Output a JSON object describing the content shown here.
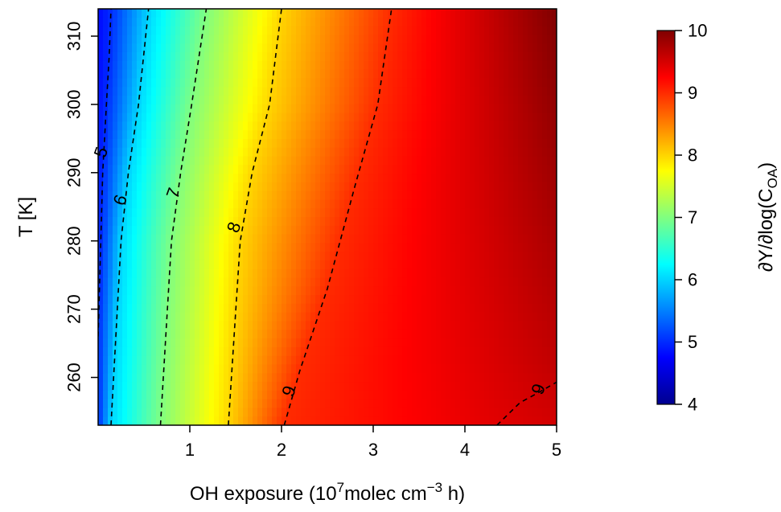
{
  "chart_data": {
    "type": "heatmap",
    "title": "",
    "xlabel": "OH exposure (10",
    "xlabel_sup": "7",
    "xlabel_rest": "molec cm",
    "xlabel_sup2": "−3",
    "xlabel_end": " h)",
    "ylabel": "T [K]",
    "colorbar_label_main": "∂Y/∂log(C",
    "colorbar_label_sub": "OA",
    "colorbar_label_end": ")",
    "xlim": [
      0,
      5
    ],
    "ylim": [
      253,
      314
    ],
    "x_ticks": [
      "1",
      "2",
      "3",
      "4",
      "5"
    ],
    "x_tick_values": [
      1,
      2,
      3,
      4,
      5
    ],
    "y_ticks": [
      "260",
      "270",
      "280",
      "290",
      "300",
      "310"
    ],
    "y_tick_values": [
      260,
      270,
      280,
      290,
      300,
      310
    ],
    "colorbar_range": [
      4,
      10
    ],
    "colorbar_ticks": [
      "4",
      "5",
      "6",
      "7",
      "8",
      "9",
      "10"
    ],
    "colorbar_tick_values": [
      4,
      5,
      6,
      7,
      8,
      9,
      10
    ],
    "colormap": [
      "#00008f",
      "#0000ff",
      "#0080ff",
      "#00ffff",
      "#80ff80",
      "#ffff00",
      "#ff8000",
      "#ff0000",
      "#800000"
    ],
    "contours": [
      {
        "level": "5",
        "points": [
          [
            0.0,
            266
          ],
          [
            0.05,
            290
          ],
          [
            0.09,
            300
          ],
          [
            0.12,
            307
          ],
          [
            0.14,
            314
          ]
        ],
        "label_at": [
          0.03,
          293
        ]
      },
      {
        "level": "6",
        "points": [
          [
            0.14,
            253
          ],
          [
            0.25,
            280
          ],
          [
            0.33,
            290
          ],
          [
            0.44,
            300
          ],
          [
            0.55,
            314
          ]
        ],
        "label_at": [
          0.24,
          286
        ]
      },
      {
        "level": "7",
        "points": [
          [
            0.68,
            253
          ],
          [
            0.8,
            280
          ],
          [
            0.9,
            290
          ],
          [
            1.02,
            300
          ],
          [
            1.18,
            314
          ]
        ],
        "label_at": [
          0.82,
          287
        ]
      },
      {
        "level": "8",
        "points": [
          [
            1.42,
            253
          ],
          [
            1.55,
            280
          ],
          [
            1.68,
            290
          ],
          [
            1.87,
            300
          ],
          [
            2.0,
            314
          ]
        ],
        "label_at": [
          1.48,
          282
        ]
      },
      {
        "level": "9",
        "points": [
          [
            2.03,
            253
          ],
          [
            2.2,
            261
          ],
          [
            2.5,
            273
          ],
          [
            2.8,
            288
          ],
          [
            3.05,
            300
          ],
          [
            3.2,
            314
          ]
        ],
        "label_at": [
          2.08,
          258
        ]
      },
      {
        "level": "9",
        "points": [
          [
            4.35,
            253
          ],
          [
            4.6,
            256.3
          ],
          [
            4.78,
            257.6
          ],
          [
            5.0,
            259.3
          ]
        ],
        "label_at": [
          4.8,
          258.3
        ]
      }
    ]
  }
}
